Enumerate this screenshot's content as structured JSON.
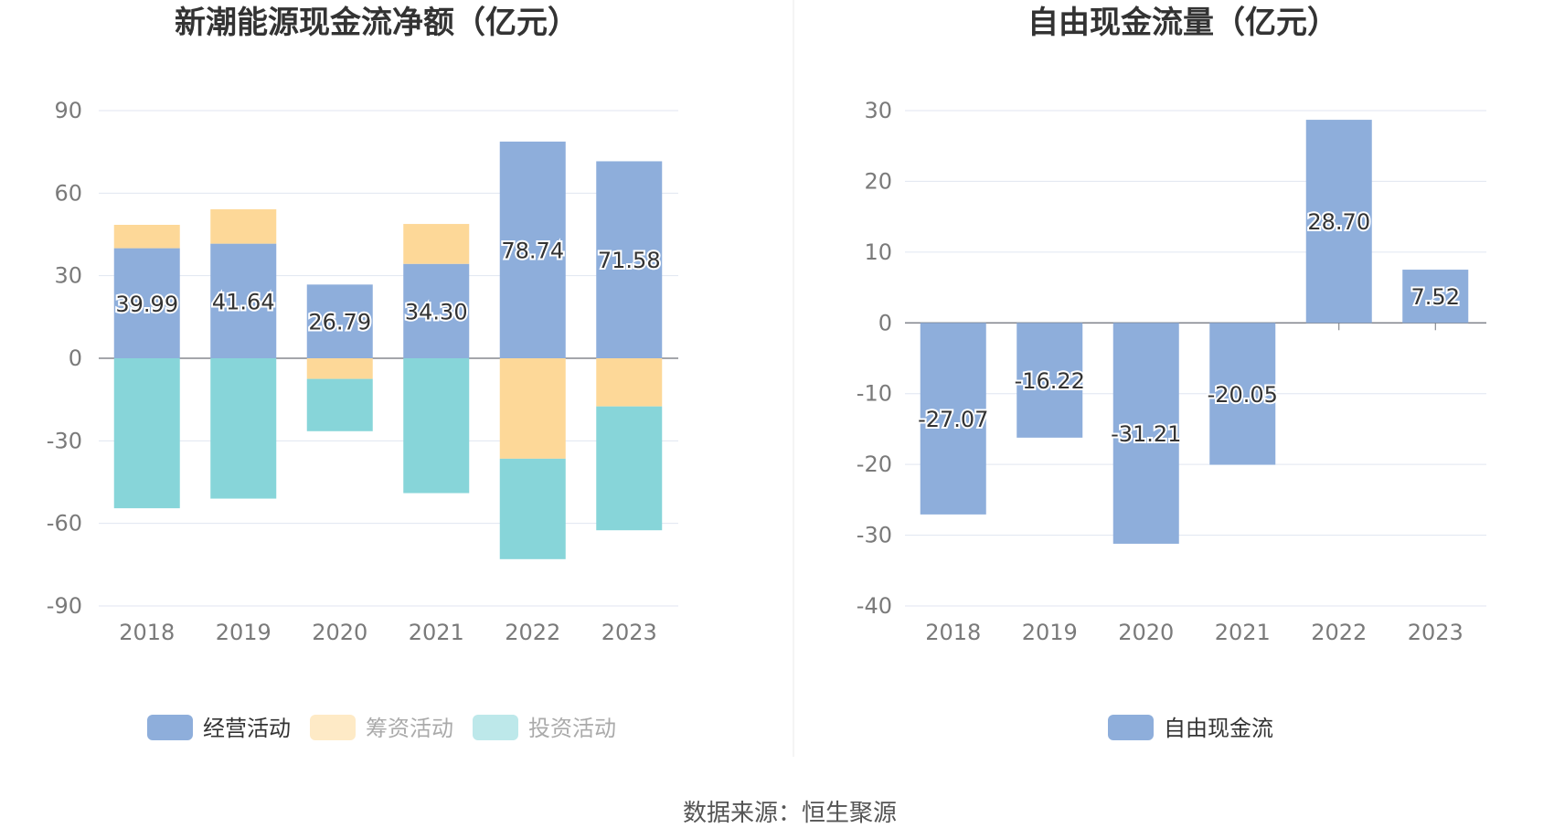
{
  "chart_data": [
    {
      "type": "bar",
      "stacked": true,
      "title": "新潮能源现金流净额（亿元）",
      "categories": [
        "2018",
        "2019",
        "2020",
        "2021",
        "2022",
        "2023"
      ],
      "ylim": [
        -90,
        90
      ],
      "yticks": [
        90,
        60,
        30,
        0,
        -30,
        -60,
        -90
      ],
      "grid": true,
      "legend_position": "bottom",
      "series": [
        {
          "name": "经营活动",
          "color": "#8eaedb",
          "values": [
            39.99,
            41.64,
            26.79,
            34.3,
            78.74,
            71.58
          ],
          "labels": [
            "39.99",
            "41.64",
            "26.79",
            "34.30",
            "78.74",
            "71.58"
          ]
        },
        {
          "name": "筹资活动",
          "color": "#fdd898",
          "values": [
            8.5,
            12.5,
            -7.5,
            14.5,
            -36.5,
            -17.5
          ]
        },
        {
          "name": "投资活动",
          "color": "#87d5d9",
          "values": [
            -54.5,
            -51.0,
            -19.0,
            -49.0,
            -36.5,
            -45.0
          ]
        }
      ]
    },
    {
      "type": "bar",
      "title": "自由现金流量（亿元）",
      "categories": [
        "2018",
        "2019",
        "2020",
        "2021",
        "2022",
        "2023"
      ],
      "ylim": [
        -40,
        30
      ],
      "yticks": [
        30,
        20,
        10,
        0,
        -10,
        -20,
        -30,
        -40
      ],
      "grid": true,
      "legend_position": "bottom",
      "series": [
        {
          "name": "自由现金流",
          "color": "#8eaedb",
          "values": [
            -27.07,
            -16.22,
            -31.21,
            -20.05,
            28.7,
            7.52
          ],
          "labels": [
            "-27.07",
            "-16.22",
            "-31.21",
            "-20.05",
            "28.70",
            "7.52"
          ]
        }
      ]
    }
  ],
  "legend_inactive_text_color": "#aaaaaa",
  "legend_active_text_color": "#333333",
  "source": "数据来源：恒生聚源"
}
